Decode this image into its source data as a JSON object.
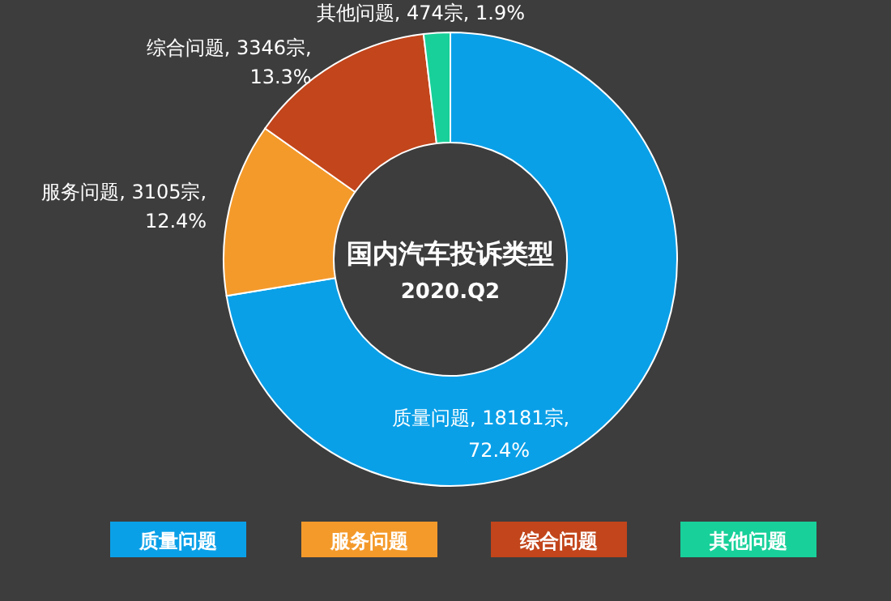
{
  "chart_data": {
    "type": "donut",
    "title": "国内汽车投诉类型",
    "subtitle": "2020.Q2",
    "categories": [
      "质量问题",
      "服务问题",
      "综合问题",
      "其他问题"
    ],
    "values": [
      18181,
      3105,
      3346,
      474
    ],
    "value_labels": [
      "质量问题, 18181宗, 72.4%",
      "服务问题, 3105宗, 12.4%",
      "综合问题, 3346宗, 13.3%",
      "其他问题, 474宗, 1.9%"
    ],
    "colors": [
      "#0aa0e8",
      "#f49a2b",
      "#c2451b",
      "#18d09a"
    ],
    "legend": "bottom"
  }
}
